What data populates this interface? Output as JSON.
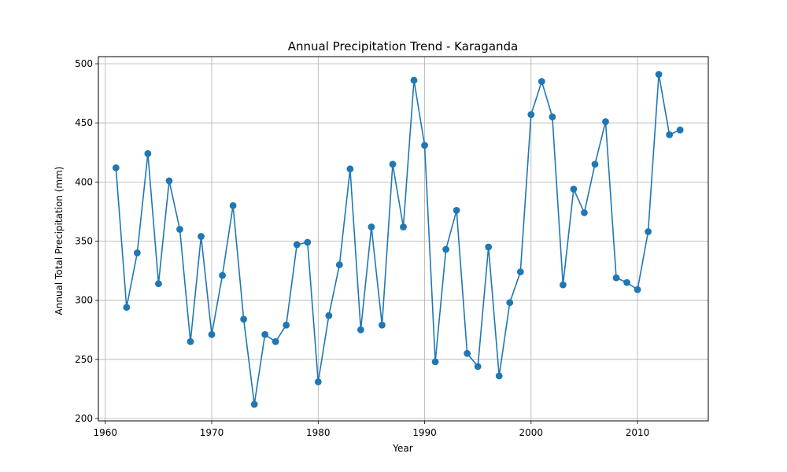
{
  "chart_data": {
    "type": "line",
    "title": "Annual Precipitation Trend - Karaganda",
    "xlabel": "Year",
    "ylabel": "Annual Total Precipitation (mm)",
    "xlim": [
      1959.35,
      2016.65
    ],
    "ylim": [
      198,
      506
    ],
    "x_ticks": [
      1960,
      1970,
      1980,
      1990,
      2000,
      2010
    ],
    "y_ticks": [
      200,
      250,
      300,
      350,
      400,
      450,
      500
    ],
    "grid": true,
    "marker": "circle",
    "color": "#1f77b4",
    "series": [
      {
        "x": [
          1961,
          1962,
          1963,
          1964,
          1965,
          1966,
          1967,
          1968,
          1969,
          1970,
          1971,
          1972,
          1973,
          1974,
          1975,
          1976,
          1977,
          1978,
          1979,
          1980,
          1981,
          1982,
          1983,
          1984,
          1985,
          1986,
          1987,
          1988,
          1989,
          1990,
          1991,
          1992,
          1993,
          1994,
          1995,
          1996,
          1997,
          1998,
          1999,
          2000,
          2001,
          2002,
          2003,
          2004,
          2005,
          2006,
          2007,
          2008,
          2009,
          2010,
          2011,
          2012,
          2013,
          2014
        ],
        "values": [
          412,
          294,
          340,
          424,
          314,
          401,
          360,
          265,
          354,
          271,
          321,
          380,
          284,
          212,
          271,
          265,
          279,
          347,
          349,
          231,
          287,
          330,
          411,
          275,
          362,
          279,
          415,
          362,
          486,
          431,
          248,
          343,
          376,
          255,
          244,
          345,
          236,
          298,
          324,
          457,
          485,
          455,
          313,
          394,
          374,
          415,
          451,
          319,
          315,
          309,
          358,
          491,
          440,
          444
        ]
      }
    ]
  }
}
